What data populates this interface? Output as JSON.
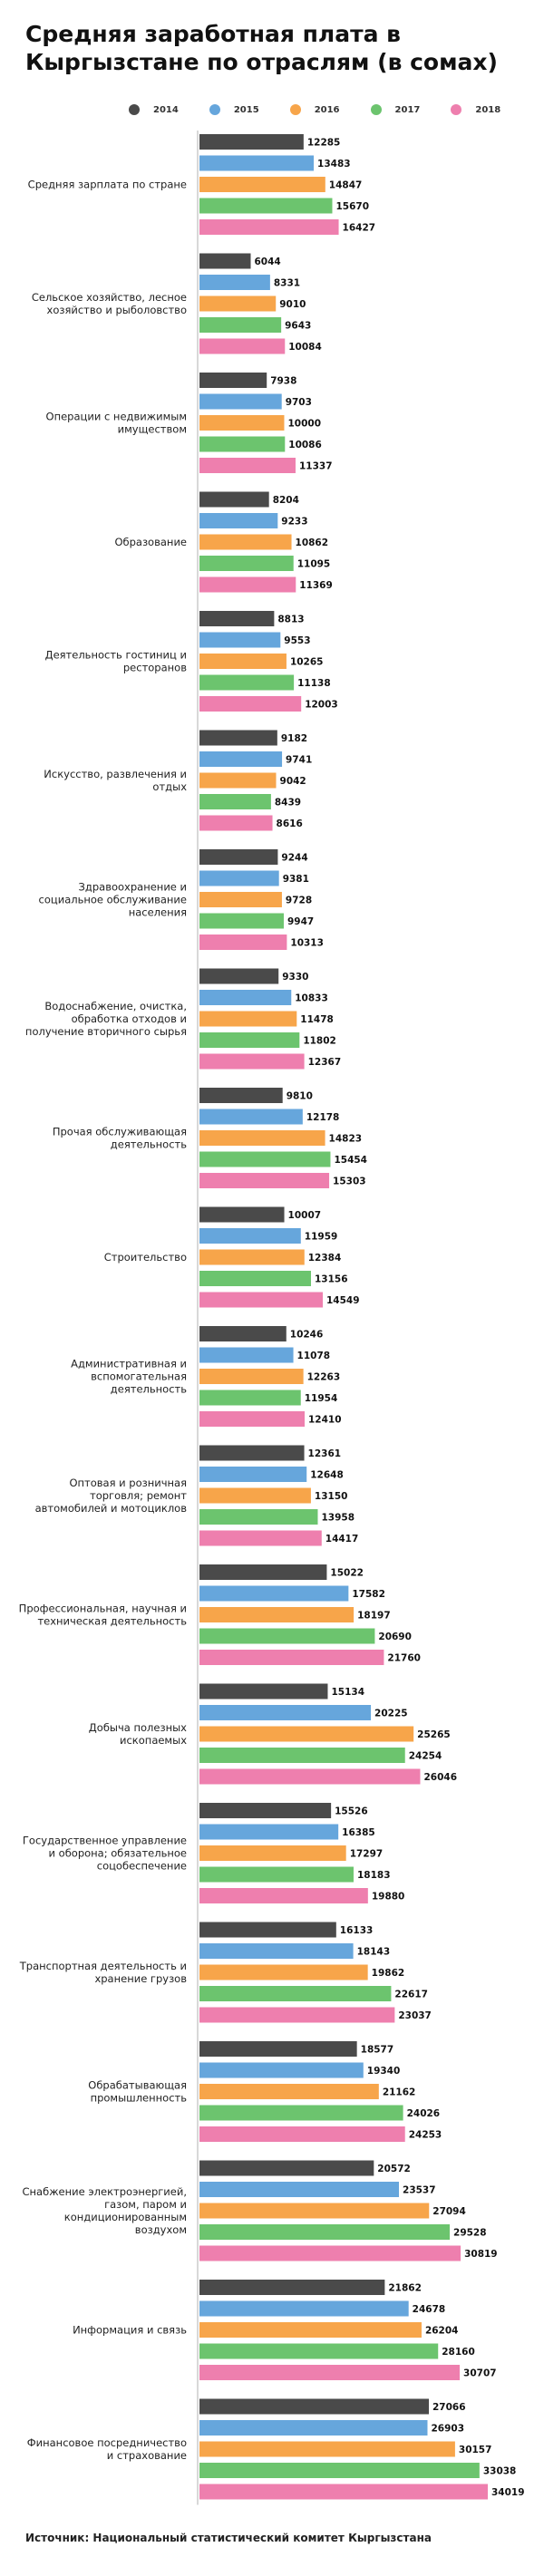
{
  "title": "Средняя заработная плата в Кыргызстане по отраслям (в сомах)",
  "source": "Источник: Национальный статистический комитет Кыргызстана",
  "chart_data": {
    "type": "bar",
    "orientation": "horizontal",
    "title": "Средняя заработная плата в Кыргызстане по отраслям (в сомах)",
    "xlabel": "",
    "ylabel": "",
    "xlim": [
      0,
      34019
    ],
    "grid": false,
    "legend_position": "top",
    "series": [
      {
        "name": "2014",
        "color": "#4a4a4a"
      },
      {
        "name": "2015",
        "color": "#66a6dc"
      },
      {
        "name": "2016",
        "color": "#f7a54a"
      },
      {
        "name": "2017",
        "color": "#6cc46e"
      },
      {
        "name": "2018",
        "color": "#ee7fae"
      }
    ],
    "categories": [
      {
        "label": [
          "Средняя зарплата по стране"
        ],
        "values": [
          12285,
          13483,
          14847,
          15670,
          16427
        ]
      },
      {
        "label": [
          "Сельское хозяйство, лесное",
          "хозяйство и рыболовство"
        ],
        "values": [
          6044,
          8331,
          9010,
          9643,
          10084
        ]
      },
      {
        "label": [
          "Операции с недвижимым",
          "имуществом"
        ],
        "values": [
          7938,
          9703,
          10000,
          10086,
          11337
        ]
      },
      {
        "label": [
          "Образование"
        ],
        "values": [
          8204,
          9233,
          10862,
          11095,
          11369
        ]
      },
      {
        "label": [
          "Деятельность гостиниц и",
          "ресторанов"
        ],
        "values": [
          8813,
          9553,
          10265,
          11138,
          12003
        ]
      },
      {
        "label": [
          "Искусство, развлечения и",
          "отдых"
        ],
        "values": [
          9182,
          9741,
          9042,
          8439,
          8616
        ]
      },
      {
        "label": [
          "Здравоохранение и",
          "социальное обслуживание",
          "населения"
        ],
        "values": [
          9244,
          9381,
          9728,
          9947,
          10313
        ]
      },
      {
        "label": [
          "Водоснабжение, очистка,",
          "обработка отходов и",
          "получение вторичного сырья"
        ],
        "values": [
          9330,
          10833,
          11478,
          11802,
          12367
        ]
      },
      {
        "label": [
          "Прочая обслуживающая",
          "деятельность"
        ],
        "values": [
          9810,
          12178,
          14823,
          15454,
          15303
        ]
      },
      {
        "label": [
          "Строительство"
        ],
        "values": [
          10007,
          11959,
          12384,
          13156,
          14549
        ]
      },
      {
        "label": [
          "Административная и",
          "вспомогательная",
          "деятельность"
        ],
        "values": [
          10246,
          11078,
          12263,
          11954,
          12410
        ]
      },
      {
        "label": [
          "Оптовая и розничная",
          "торговля; ремонт",
          "автомобилей и мотоциклов"
        ],
        "values": [
          12361,
          12648,
          13150,
          13958,
          14417
        ]
      },
      {
        "label": [
          "Профессиональная, научная и",
          "техническая деятельность"
        ],
        "values": [
          15022,
          17582,
          18197,
          20690,
          21760
        ]
      },
      {
        "label": [
          "Добыча полезных",
          "ископаемых"
        ],
        "values": [
          15134,
          20225,
          25265,
          24254,
          26046
        ]
      },
      {
        "label": [
          "Государственное управление",
          "и оборона; обязательное",
          "соцобеспечение"
        ],
        "values": [
          15526,
          16385,
          17297,
          18183,
          19880
        ]
      },
      {
        "label": [
          "Транспортная деятельность и",
          "хранение грузов"
        ],
        "values": [
          16133,
          18143,
          19862,
          22617,
          23037
        ]
      },
      {
        "label": [
          "Обрабатывающая",
          "промышленность"
        ],
        "values": [
          18577,
          19340,
          21162,
          24026,
          24253
        ]
      },
      {
        "label": [
          "Снабжение электроэнергией,",
          "газом, паром и",
          "кондиционированным",
          "воздухом"
        ],
        "values": [
          20572,
          23537,
          27094,
          29528,
          30819
        ]
      },
      {
        "label": [
          "Информация и связь"
        ],
        "values": [
          21862,
          24678,
          26204,
          28160,
          30707
        ]
      },
      {
        "label": [
          "Финансовое посредничество",
          "и страхование"
        ],
        "values": [
          27066,
          26903,
          30157,
          33038,
          34019
        ]
      }
    ]
  }
}
